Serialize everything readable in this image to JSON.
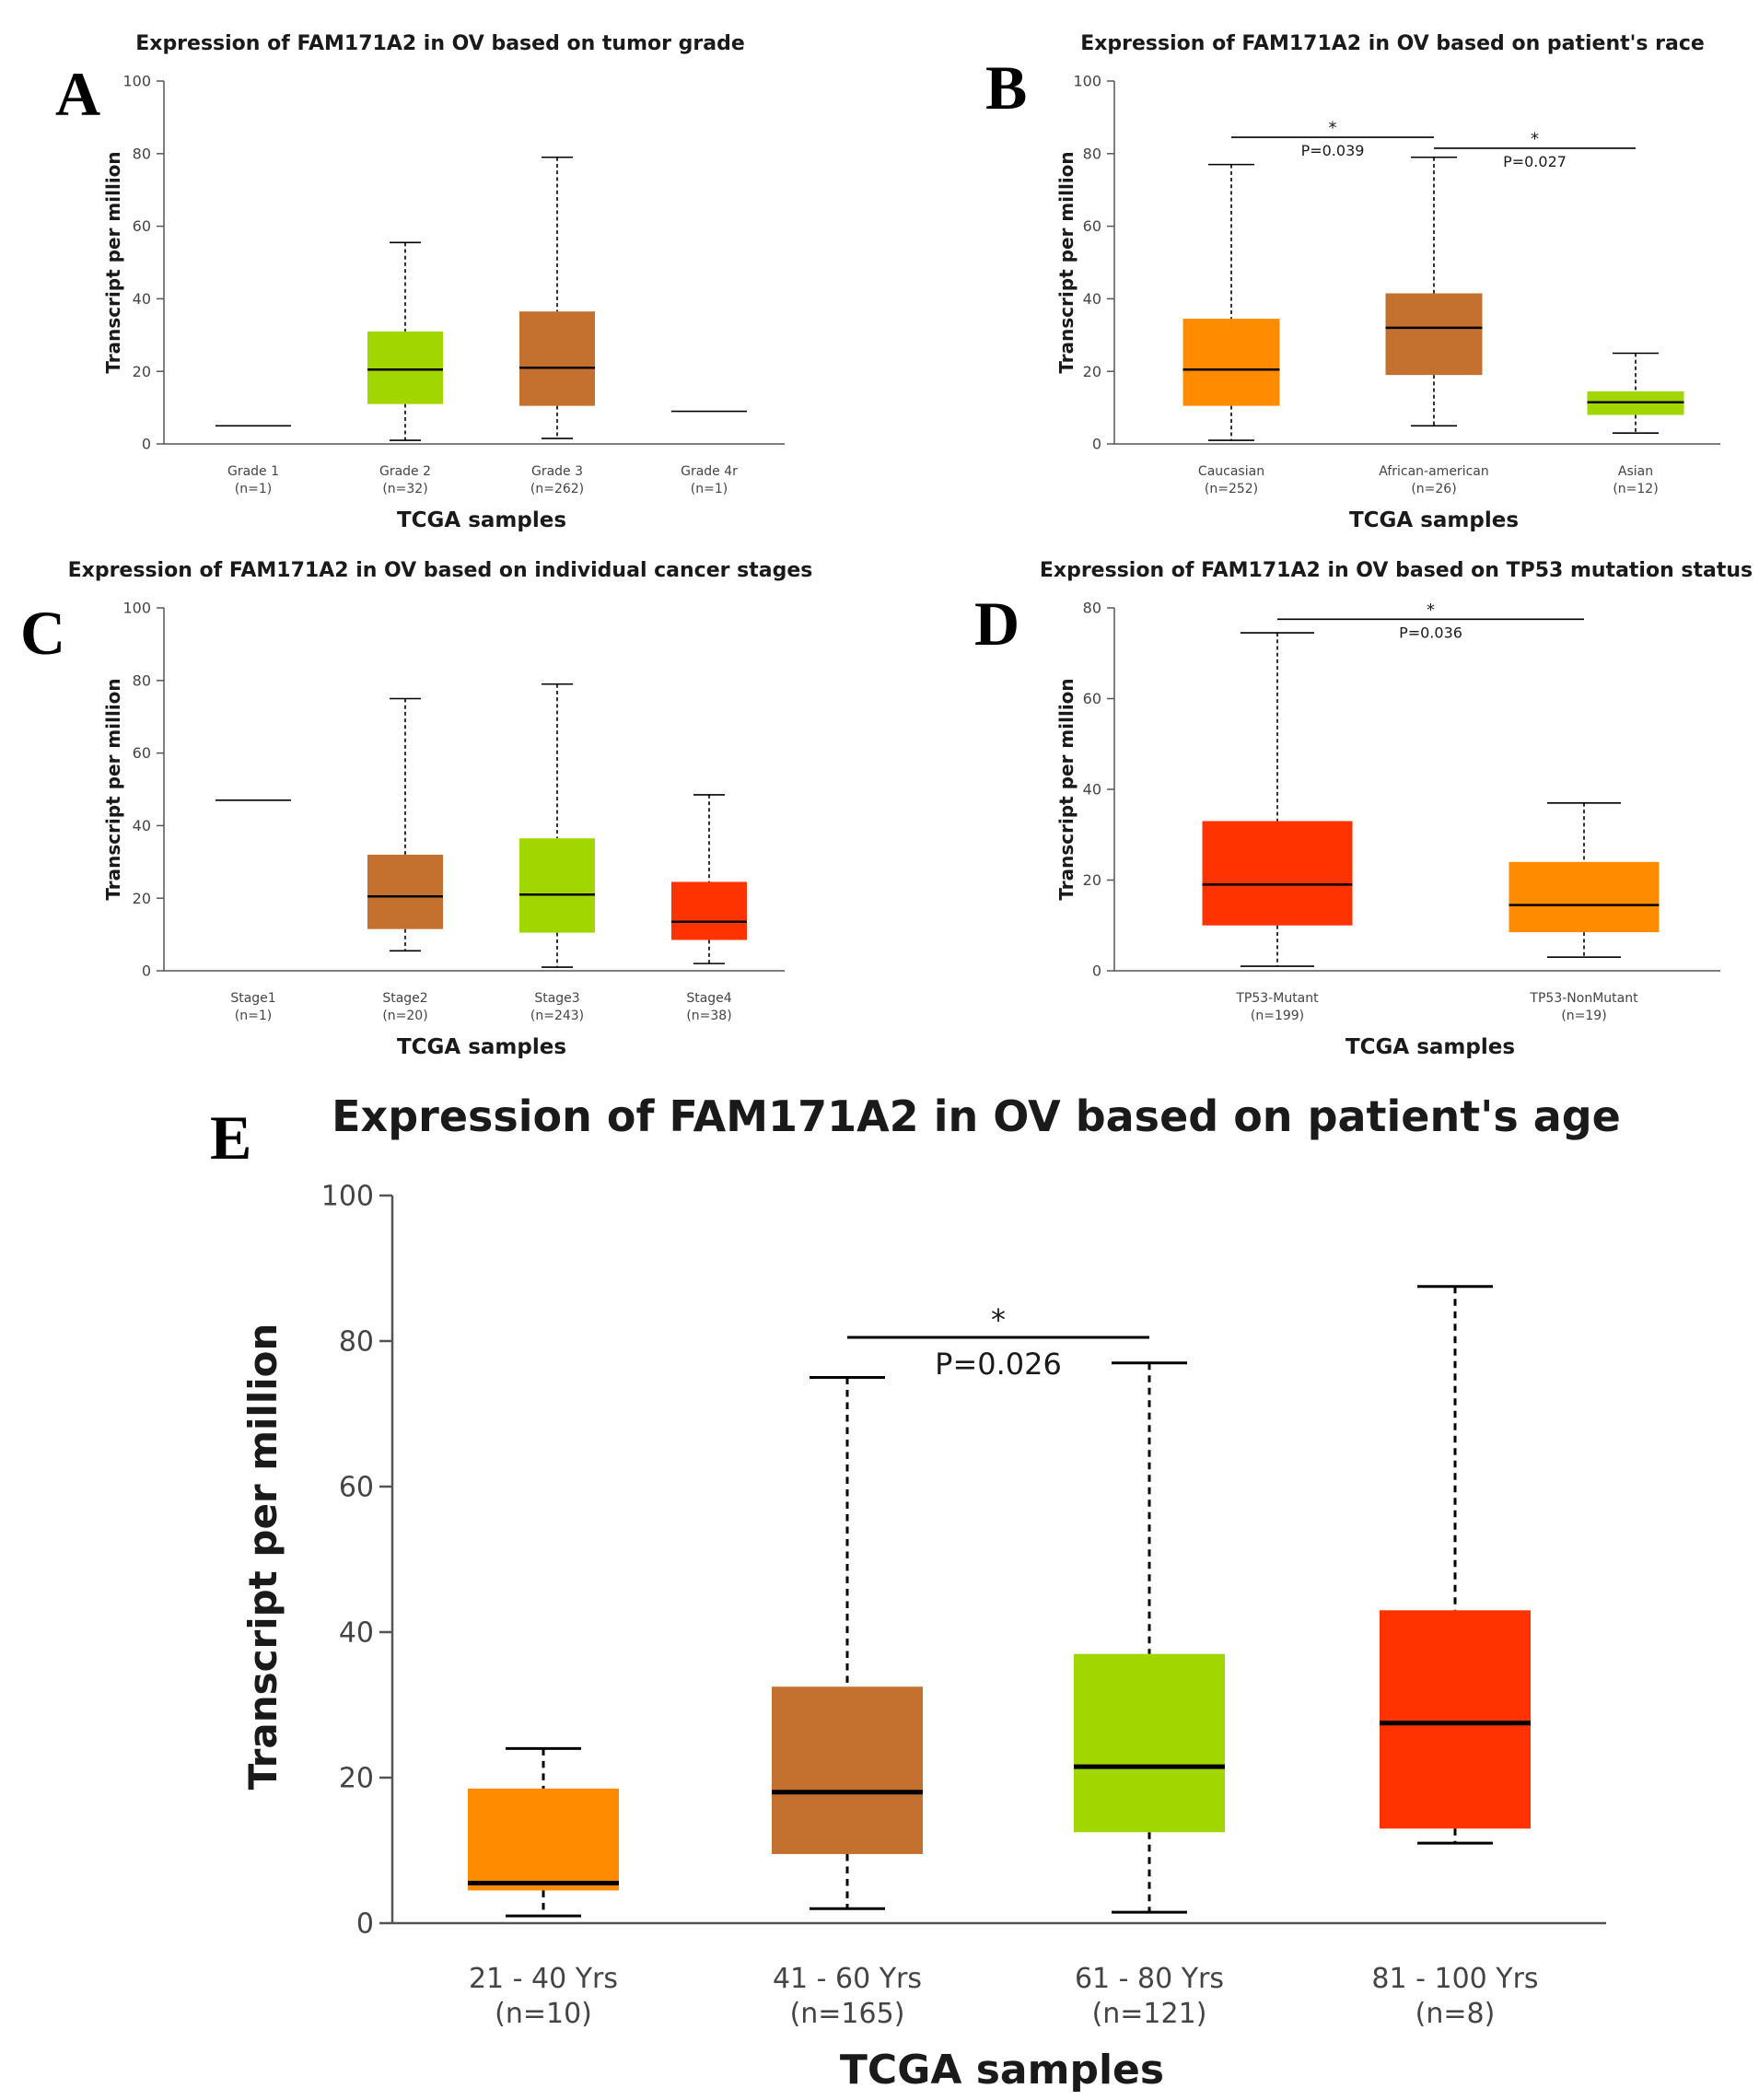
{
  "colors": {
    "orange": "#FF8C00",
    "brown": "#C4702E",
    "green": "#A2D600",
    "red": "#FF3300",
    "axis": "#555555",
    "text": "#1a1a1a"
  },
  "chart_data": [
    {
      "panel": "A",
      "type": "box",
      "title": "Expression of FAM171A2 in OV based on tumor grade",
      "xlabel": "TCGA samples",
      "ylabel": "Transcript per million",
      "ylim": [
        0,
        100
      ],
      "yticks": [
        0,
        20,
        40,
        60,
        80,
        100
      ],
      "categories": [
        {
          "name": "Grade 1",
          "n": "(n=1)",
          "min": 5,
          "q1": 5,
          "median": 5,
          "q3": 5,
          "max": 5,
          "color": "none"
        },
        {
          "name": "Grade 2",
          "n": "(n=32)",
          "min": 1,
          "q1": 11,
          "median": 20.5,
          "q3": 31,
          "max": 55.5,
          "color": "#A2D600"
        },
        {
          "name": "Grade 3",
          "n": "(n=262)",
          "min": 1.5,
          "q1": 10.5,
          "median": 21,
          "q3": 36.5,
          "max": 79,
          "color": "#C4702E"
        },
        {
          "name": "Grade 4r",
          "n": "(n=1)",
          "min": 9,
          "q1": 9,
          "median": 9,
          "q3": 9,
          "max": 9,
          "color": "none"
        }
      ],
      "significance": []
    },
    {
      "panel": "B",
      "type": "box",
      "title": "Expression of FAM171A2 in OV based on patient's race",
      "xlabel": "TCGA samples",
      "ylabel": "Transcript per million",
      "ylim": [
        0,
        100
      ],
      "yticks": [
        0,
        20,
        40,
        60,
        80,
        100
      ],
      "categories": [
        {
          "name": "Caucasian",
          "n": "(n=252)",
          "min": 1,
          "q1": 10.5,
          "median": 20.5,
          "q3": 34.5,
          "max": 77,
          "color": "#FF8C00"
        },
        {
          "name": "African-american",
          "n": "(n=26)",
          "min": 5,
          "q1": 19,
          "median": 32,
          "q3": 41.5,
          "max": 79,
          "color": "#C4702E"
        },
        {
          "name": "Asian",
          "n": "(n=12)",
          "min": 3,
          "q1": 8,
          "median": 11.5,
          "q3": 14.5,
          "max": 25,
          "color": "#A2D600"
        }
      ],
      "significance": [
        {
          "from": 0,
          "to": 1,
          "y": 84.5,
          "star": "*",
          "label": "P=0.039"
        },
        {
          "from": 1,
          "to": 2,
          "y": 81.5,
          "star": "*",
          "label": "P=0.027"
        }
      ]
    },
    {
      "panel": "C",
      "type": "box",
      "title": "Expression of FAM171A2 in OV based on individual cancer stages",
      "xlabel": "TCGA samples",
      "ylabel": "Transcript per million",
      "ylim": [
        0,
        100
      ],
      "yticks": [
        0,
        20,
        40,
        60,
        80,
        100
      ],
      "categories": [
        {
          "name": "Stage1",
          "n": "(n=1)",
          "min": 47,
          "q1": 47,
          "median": 47,
          "q3": 47,
          "max": 47,
          "color": "none"
        },
        {
          "name": "Stage2",
          "n": "(n=20)",
          "min": 5.5,
          "q1": 11.5,
          "median": 20.5,
          "q3": 32,
          "max": 75,
          "color": "#C4702E"
        },
        {
          "name": "Stage3",
          "n": "(n=243)",
          "min": 1,
          "q1": 10.5,
          "median": 21,
          "q3": 36.5,
          "max": 79,
          "color": "#A2D600"
        },
        {
          "name": "Stage4",
          "n": "(n=38)",
          "min": 2,
          "q1": 8.5,
          "median": 13.5,
          "q3": 24.5,
          "max": 48.5,
          "color": "#FF3300"
        }
      ],
      "significance": []
    },
    {
      "panel": "D",
      "type": "box",
      "title": "Expression of FAM171A2 in OV based on TP53 mutation status",
      "xlabel": "TCGA samples",
      "ylabel": "Transcript per million",
      "ylim": [
        0,
        80
      ],
      "yticks": [
        0,
        20,
        40,
        60,
        80
      ],
      "categories": [
        {
          "name": "TP53-Mutant",
          "n": "(n=199)",
          "min": 1,
          "q1": 10,
          "median": 19,
          "q3": 33,
          "max": 74.5,
          "color": "#FF3300"
        },
        {
          "name": "TP53-NonMutant",
          "n": "(n=19)",
          "min": 3,
          "q1": 8.5,
          "median": 14.5,
          "q3": 24,
          "max": 37,
          "color": "#FF8C00"
        }
      ],
      "significance": [
        {
          "from": 0,
          "to": 1,
          "y": 77.5,
          "star": "*",
          "label": "P=0.036"
        }
      ]
    },
    {
      "panel": "E",
      "type": "box",
      "title": "Expression of FAM171A2 in OV based on patient's age",
      "xlabel": "TCGA samples",
      "ylabel": "Transcript per million",
      "ylim": [
        0,
        100
      ],
      "yticks": [
        0,
        20,
        40,
        60,
        80,
        100
      ],
      "categories": [
        {
          "name": "21 - 40 Yrs",
          "n": "(n=10)",
          "min": 1,
          "q1": 4.5,
          "median": 5.5,
          "q3": 18.5,
          "max": 24,
          "color": "#FF8C00"
        },
        {
          "name": "41 - 60 Yrs",
          "n": "(n=165)",
          "min": 2,
          "q1": 9.5,
          "median": 18,
          "q3": 32.5,
          "max": 75,
          "color": "#C4702E"
        },
        {
          "name": "61 - 80 Yrs",
          "n": "(n=121)",
          "min": 1.5,
          "q1": 12.5,
          "median": 21.5,
          "q3": 37,
          "max": 77,
          "color": "#A2D600"
        },
        {
          "name": "81 - 100 Yrs",
          "n": "(n=8)",
          "min": 11,
          "q1": 13,
          "median": 27.5,
          "q3": 43,
          "max": 87.5,
          "color": "#FF3300"
        }
      ],
      "significance": [
        {
          "from": 1,
          "to": 2,
          "y": 80.5,
          "star": "*",
          "label": "P=0.026"
        }
      ]
    }
  ]
}
